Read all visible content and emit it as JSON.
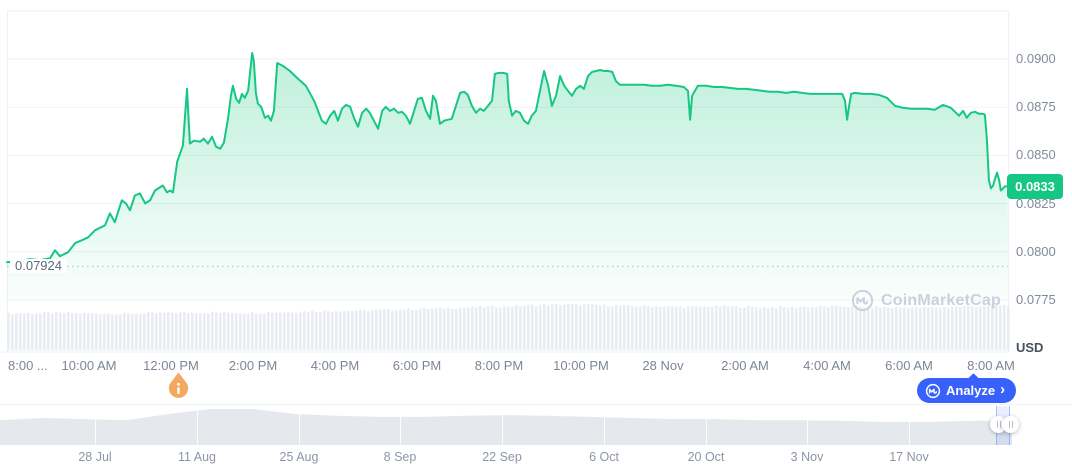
{
  "chart_data": {
    "type": "area",
    "x_axis": {
      "ticks": [
        "8:00 ...",
        "10:00 AM",
        "12:00 PM",
        "2:00 PM",
        "4:00 PM",
        "6:00 PM",
        "8:00 PM",
        "10:00 PM",
        "28 Nov",
        "2:00 AM",
        "4:00 AM",
        "6:00 AM",
        "8:00 AM"
      ]
    },
    "y_axis": {
      "ticks": [
        "0.0900",
        "0.0875",
        "0.0850",
        "0.0825",
        "0.0800",
        "0.0775"
      ],
      "unit": "USD",
      "min": 0.0775,
      "max": 0.0905,
      "grid": true
    },
    "series": {
      "name": "price-usd",
      "x_hours_from_first_tick": [
        0,
        0.32,
        0.56,
        0.8,
        1.05,
        1.17,
        1.29,
        1.49,
        1.66,
        1.83,
        1.98,
        2.15,
        2.39,
        2.51,
        2.63,
        2.8,
        2.9,
        3.0,
        3.12,
        3.24,
        3.37,
        3.49,
        3.61,
        3.8,
        3.9,
        3.98,
        4.05,
        4.15,
        4.29,
        4.39,
        4.46,
        4.56,
        4.71,
        4.8,
        4.9,
        5.0,
        5.1,
        5.2,
        5.29,
        5.39,
        5.46,
        5.51,
        5.59,
        5.66,
        5.73,
        5.8,
        5.88,
        5.98,
        6.02,
        6.07,
        6.12,
        6.2,
        6.29,
        6.37,
        6.44,
        6.51,
        6.59,
        6.73,
        6.9,
        7.1,
        7.29,
        7.49,
        7.68,
        7.78,
        7.88,
        7.98,
        8.07,
        8.17,
        8.27,
        8.37,
        8.46,
        8.56,
        8.66,
        8.76,
        8.85,
        8.95,
        9.05,
        9.15,
        9.24,
        9.34,
        9.44,
        9.54,
        9.63,
        9.73,
        9.83,
        9.93,
        10.02,
        10.12,
        10.22,
        10.32,
        10.39,
        10.46,
        10.56,
        10.66,
        10.76,
        10.85,
        10.95,
        11.05,
        11.15,
        11.24,
        11.34,
        11.44,
        11.54,
        11.63,
        11.73,
        11.83,
        11.9,
        12.0,
        12.1,
        12.2,
        12.24,
        12.32,
        12.41,
        12.51,
        12.61,
        12.71,
        12.8,
        12.9,
        13.0,
        13.1,
        13.2,
        13.29,
        13.39,
        13.49,
        13.59,
        13.68,
        13.78,
        13.88,
        13.98,
        14.07,
        14.17,
        14.27,
        14.37,
        14.46,
        14.56,
        14.66,
        14.76,
        14.85,
        14.95,
        15.15,
        15.34,
        15.54,
        15.73,
        15.93,
        16.12,
        16.32,
        16.51,
        16.61,
        16.66,
        16.71,
        16.85,
        17.05,
        17.24,
        17.44,
        17.63,
        17.83,
        18.02,
        18.22,
        18.41,
        18.61,
        18.8,
        19.0,
        19.2,
        19.39,
        19.59,
        19.78,
        19.98,
        20.17,
        20.37,
        20.44,
        20.49,
        20.54,
        20.59,
        20.68,
        20.88,
        21.07,
        21.27,
        21.46,
        21.66,
        21.85,
        22.05,
        22.24,
        22.44,
        22.63,
        22.83,
        23.02,
        23.22,
        23.32,
        23.41,
        23.51,
        23.61,
        23.71,
        23.8,
        23.85,
        23.9,
        23.95,
        24.0,
        24.05,
        24.1,
        24.15,
        24.2,
        24.24,
        24.29,
        24.34,
        24.41
      ],
      "values": [
        0.07946,
        0.07952,
        0.07962,
        0.07957,
        0.07967,
        0.08008,
        0.07977,
        0.07998,
        0.08045,
        0.0806,
        0.08075,
        0.08112,
        0.08137,
        0.08199,
        0.08153,
        0.08267,
        0.08251,
        0.08215,
        0.08292,
        0.08303,
        0.08251,
        0.08267,
        0.08318,
        0.08344,
        0.08308,
        0.08318,
        0.08308,
        0.08468,
        0.08551,
        0.08845,
        0.08561,
        0.08576,
        0.08571,
        0.08587,
        0.08561,
        0.08597,
        0.08545,
        0.08535,
        0.08566,
        0.0869,
        0.08809,
        0.08861,
        0.08793,
        0.08773,
        0.08819,
        0.08799,
        0.08835,
        0.09031,
        0.0899,
        0.08824,
        0.08768,
        0.08752,
        0.08695,
        0.08706,
        0.0868,
        0.08731,
        0.08979,
        0.08964,
        0.08938,
        0.08897,
        0.08861,
        0.08783,
        0.0868,
        0.08664,
        0.08706,
        0.08731,
        0.0868,
        0.08742,
        0.08762,
        0.08752,
        0.08695,
        0.08649,
        0.08721,
        0.08742,
        0.08721,
        0.0868,
        0.08638,
        0.08731,
        0.08752,
        0.08731,
        0.08742,
        0.08721,
        0.08726,
        0.08706,
        0.08664,
        0.08731,
        0.08793,
        0.08799,
        0.08731,
        0.0869,
        0.08809,
        0.08783,
        0.08664,
        0.0868,
        0.08685,
        0.0869,
        0.08757,
        0.08824,
        0.0883,
        0.08814,
        0.08757,
        0.08721,
        0.08742,
        0.08731,
        0.08757,
        0.08783,
        0.08923,
        0.08928,
        0.08928,
        0.08923,
        0.08783,
        0.08706,
        0.08731,
        0.08721,
        0.0868,
        0.08664,
        0.08706,
        0.08731,
        0.08835,
        0.08938,
        0.08861,
        0.08757,
        0.08809,
        0.08912,
        0.08861,
        0.08835,
        0.08809,
        0.08845,
        0.08861,
        0.08845,
        0.08912,
        0.08933,
        0.08938,
        0.08943,
        0.08938,
        0.08938,
        0.08933,
        0.08886,
        0.08866,
        0.08866,
        0.08866,
        0.08866,
        0.08861,
        0.08861,
        0.08866,
        0.08861,
        0.08855,
        0.08835,
        0.08685,
        0.08809,
        0.08861,
        0.08861,
        0.08855,
        0.08855,
        0.0885,
        0.08845,
        0.08845,
        0.0884,
        0.08835,
        0.0883,
        0.0883,
        0.08824,
        0.0883,
        0.08824,
        0.08819,
        0.08819,
        0.08819,
        0.08819,
        0.08819,
        0.08783,
        0.08685,
        0.08757,
        0.08819,
        0.08824,
        0.08819,
        0.08819,
        0.08814,
        0.08799,
        0.08757,
        0.08747,
        0.08742,
        0.08742,
        0.08742,
        0.08737,
        0.08762,
        0.08747,
        0.08706,
        0.08731,
        0.08695,
        0.08721,
        0.08726,
        0.08716,
        0.08716,
        0.08711,
        0.08582,
        0.0837,
        0.08329,
        0.08344,
        0.0838,
        0.08411,
        0.0837,
        0.08318,
        0.08329,
        0.08339,
        0.08339
      ]
    },
    "current_price_label": "0.0833",
    "reference_line": {
      "label": "0.07924",
      "value": 0.07924
    },
    "volume_relative": [
      0.79,
      0.8,
      0.79,
      0.78,
      0.8,
      0.81,
      0.8,
      0.82,
      0.84,
      0.85,
      0.88,
      0.9,
      0.93,
      0.96,
      0.98,
      0.96,
      0.94,
      0.93,
      0.94,
      0.92,
      0.93,
      0.94,
      0.92,
      0.91,
      0.94,
      0.96
    ],
    "navigator": {
      "dates": [
        "28 Jul",
        "11 Aug",
        "25 Aug",
        "8 Sep",
        "22 Sep",
        "6 Oct",
        "20 Oct",
        "3 Nov",
        "17 Nov"
      ],
      "series_relative": [
        0.69,
        0.75,
        0.72,
        0.69,
        0.86,
        1.0,
        1.0,
        0.86,
        0.81,
        0.78,
        0.78,
        0.81,
        0.83,
        0.81,
        0.78,
        0.75,
        0.72,
        0.72,
        0.69,
        0.69,
        0.67,
        0.64,
        0.64,
        0.67,
        0.69
      ],
      "selected_range_position": "right-edge"
    }
  },
  "branding": {
    "watermark": "CoinMarketCap",
    "analyze": {
      "label": "Analyze",
      "chevron": "›"
    }
  },
  "event_marker": {
    "glyph": "i"
  },
  "colors": {
    "accent_green": "#16c784",
    "accent_blue": "#3861fb",
    "warning_orange": "#f4a85f",
    "grid": "#eff2f5",
    "dotted_line": "#c3cad6",
    "volume_bar": "#e9edf2",
    "navigator_fill": "#e5e9ee",
    "watermark_gray": "#c9d1dc",
    "band_blue": "rgba(56,97,251,0.10)"
  }
}
